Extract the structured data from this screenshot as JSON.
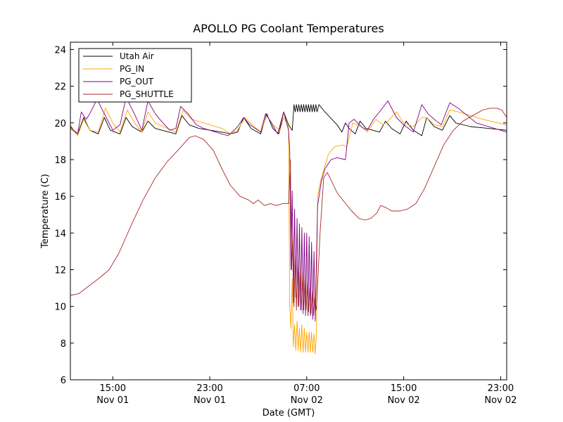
{
  "chart_data": {
    "type": "line",
    "title": "APOLLO PG Coolant Temperatures",
    "xlabel": "Date (GMT)",
    "ylabel": "Temperature (C)",
    "x_unit": "hours since Nov 01 11:30 GMT",
    "xlim": [
      0,
      36
    ],
    "ylim": [
      6,
      24.4
    ],
    "yticks": [
      6,
      8,
      10,
      12,
      14,
      16,
      18,
      20,
      22,
      24
    ],
    "xticks": [
      {
        "x": 3.5,
        "line1": "15:00",
        "line2": "Nov 01"
      },
      {
        "x": 11.5,
        "line1": "23:00",
        "line2": "Nov 01"
      },
      {
        "x": 19.5,
        "line1": "07:00",
        "line2": "Nov 02"
      },
      {
        "x": 27.5,
        "line1": "15:00",
        "line2": "Nov 02"
      },
      {
        "x": 35.5,
        "line1": "23:00",
        "line2": "Nov 02"
      }
    ],
    "legend_position": "top-left",
    "series": [
      {
        "name": "Utah Air",
        "color": "#000000",
        "points": [
          [
            0,
            19.8
          ],
          [
            0.6,
            19.4
          ],
          [
            1.1,
            20.3
          ],
          [
            1.6,
            19.6
          ],
          [
            2.3,
            19.4
          ],
          [
            2.8,
            20.3
          ],
          [
            3.3,
            19.6
          ],
          [
            4.1,
            19.4
          ],
          [
            4.6,
            20.3
          ],
          [
            5.1,
            19.8
          ],
          [
            5.9,
            19.5
          ],
          [
            6.4,
            20.1
          ],
          [
            7.0,
            19.7
          ],
          [
            8.7,
            19.4
          ],
          [
            9.2,
            20.4
          ],
          [
            9.8,
            19.9
          ],
          [
            10.6,
            19.7
          ],
          [
            12.5,
            19.5
          ],
          [
            13.2,
            19.4
          ],
          [
            13.8,
            19.5
          ],
          [
            14.3,
            20.3
          ],
          [
            14.9,
            19.7
          ],
          [
            15.7,
            19.4
          ],
          [
            16.2,
            20.5
          ],
          [
            16.7,
            19.7
          ],
          [
            17.2,
            19.4
          ],
          [
            17.6,
            20.6
          ],
          [
            18.0,
            19.9
          ],
          [
            18.3,
            19.6
          ],
          [
            18.45,
            21.0
          ],
          [
            18.55,
            20.6
          ],
          [
            18.65,
            21.0
          ],
          [
            18.75,
            20.6
          ],
          [
            18.85,
            21.0
          ],
          [
            18.95,
            20.6
          ],
          [
            19.05,
            21.0
          ],
          [
            19.15,
            20.6
          ],
          [
            19.25,
            21.0
          ],
          [
            19.35,
            20.6
          ],
          [
            19.45,
            21.0
          ],
          [
            19.55,
            20.6
          ],
          [
            19.65,
            21.0
          ],
          [
            19.75,
            20.6
          ],
          [
            19.85,
            21.0
          ],
          [
            19.95,
            20.6
          ],
          [
            20.05,
            21.0
          ],
          [
            20.15,
            20.6
          ],
          [
            20.25,
            21.0
          ],
          [
            20.35,
            20.6
          ],
          [
            20.5,
            21.0
          ],
          [
            21.0,
            20.6
          ],
          [
            22.0,
            19.9
          ],
          [
            22.4,
            19.5
          ],
          [
            22.7,
            20.0
          ],
          [
            23.0,
            19.7
          ],
          [
            23.5,
            19.4
          ],
          [
            23.9,
            20.1
          ],
          [
            24.4,
            19.7
          ],
          [
            25.5,
            19.5
          ],
          [
            26.0,
            20.1
          ],
          [
            26.5,
            19.7
          ],
          [
            27.2,
            19.4
          ],
          [
            27.7,
            20.1
          ],
          [
            28.3,
            19.6
          ],
          [
            29.0,
            19.3
          ],
          [
            29.4,
            20.3
          ],
          [
            30.0,
            19.8
          ],
          [
            30.7,
            19.6
          ],
          [
            31.3,
            20.4
          ],
          [
            31.8,
            20.0
          ],
          [
            33.0,
            19.8
          ],
          [
            34.5,
            19.7
          ],
          [
            36.0,
            19.6
          ]
        ]
      },
      {
        "name": "PG_IN",
        "color": "#ffa500",
        "points": [
          [
            0,
            19.9
          ],
          [
            0.6,
            19.3
          ],
          [
            1.1,
            20.2
          ],
          [
            1.6,
            19.6
          ],
          [
            2.3,
            19.5
          ],
          [
            2.9,
            20.8
          ],
          [
            3.5,
            20.0
          ],
          [
            4.1,
            19.5
          ],
          [
            4.7,
            20.7
          ],
          [
            5.3,
            20.0
          ],
          [
            5.9,
            19.5
          ],
          [
            6.4,
            20.6
          ],
          [
            7.0,
            20.0
          ],
          [
            8.7,
            19.5
          ],
          [
            9.3,
            20.7
          ],
          [
            10.0,
            20.2
          ],
          [
            12.5,
            19.7
          ],
          [
            13.2,
            19.4
          ],
          [
            13.8,
            19.6
          ],
          [
            14.4,
            20.3
          ],
          [
            15.0,
            19.9
          ],
          [
            15.7,
            19.5
          ],
          [
            16.2,
            20.4
          ],
          [
            16.7,
            19.9
          ],
          [
            17.3,
            19.6
          ],
          [
            17.6,
            20.3
          ],
          [
            18.0,
            19.8
          ],
          [
            18.1,
            10.0
          ],
          [
            18.2,
            8.8
          ],
          [
            18.3,
            11.5
          ],
          [
            18.4,
            7.8
          ],
          [
            18.5,
            9.0
          ],
          [
            18.6,
            7.6
          ],
          [
            18.7,
            9.2
          ],
          [
            18.8,
            7.6
          ],
          [
            18.9,
            8.8
          ],
          [
            19.0,
            7.5
          ],
          [
            19.1,
            9.0
          ],
          [
            19.2,
            7.5
          ],
          [
            19.3,
            8.8
          ],
          [
            19.4,
            7.5
          ],
          [
            19.5,
            8.6
          ],
          [
            19.6,
            7.5
          ],
          [
            19.7,
            8.6
          ],
          [
            19.8,
            7.5
          ],
          [
            19.9,
            8.6
          ],
          [
            20.0,
            7.5
          ],
          [
            20.1,
            8.5
          ],
          [
            20.2,
            7.4
          ],
          [
            20.3,
            8.5
          ],
          [
            20.4,
            16.0
          ],
          [
            20.7,
            17.0
          ],
          [
            21.3,
            18.3
          ],
          [
            21.8,
            18.7
          ],
          [
            22.5,
            18.8
          ],
          [
            22.8,
            18.7
          ],
          [
            23.3,
            20.0
          ],
          [
            24.0,
            19.8
          ],
          [
            24.5,
            19.5
          ],
          [
            25.2,
            20.2
          ],
          [
            25.8,
            19.9
          ],
          [
            26.2,
            20.1
          ],
          [
            26.9,
            20.6
          ],
          [
            27.5,
            20.0
          ],
          [
            28.3,
            19.8
          ],
          [
            29.0,
            20.3
          ],
          [
            29.4,
            20.3
          ],
          [
            30.0,
            19.9
          ],
          [
            30.7,
            19.8
          ],
          [
            31.3,
            20.7
          ],
          [
            32.0,
            20.6
          ],
          [
            34.0,
            20.2
          ],
          [
            36.0,
            19.9
          ]
        ]
      },
      {
        "name": "PG_OUT",
        "color": "#800080",
        "points": [
          [
            0,
            19.7
          ],
          [
            0.6,
            19.4
          ],
          [
            0.9,
            20.6
          ],
          [
            1.3,
            20.2
          ],
          [
            1.6,
            20.5
          ],
          [
            2.2,
            21.3
          ],
          [
            2.8,
            20.5
          ],
          [
            3.5,
            19.6
          ],
          [
            4.1,
            19.9
          ],
          [
            4.6,
            21.4
          ],
          [
            5.2,
            20.6
          ],
          [
            5.9,
            19.6
          ],
          [
            6.4,
            21.2
          ],
          [
            7.0,
            20.5
          ],
          [
            7.5,
            20.1
          ],
          [
            8.2,
            19.6
          ],
          [
            8.7,
            19.7
          ],
          [
            9.1,
            20.9
          ],
          [
            9.7,
            20.5
          ],
          [
            10.4,
            19.9
          ],
          [
            11.0,
            19.7
          ],
          [
            12.5,
            19.4
          ],
          [
            13.0,
            19.3
          ],
          [
            13.5,
            19.6
          ],
          [
            13.8,
            19.8
          ],
          [
            14.3,
            20.3
          ],
          [
            14.8,
            19.9
          ],
          [
            15.7,
            19.5
          ],
          [
            16.1,
            20.5
          ],
          [
            16.6,
            20.0
          ],
          [
            17.1,
            19.4
          ],
          [
            17.6,
            20.6
          ],
          [
            18.0,
            19.6
          ],
          [
            18.1,
            18.5
          ],
          [
            18.2,
            12.0
          ],
          [
            18.3,
            16.3
          ],
          [
            18.4,
            10.2
          ],
          [
            18.5,
            15.3
          ],
          [
            18.6,
            10.5
          ],
          [
            18.7,
            14.8
          ],
          [
            18.8,
            10.0
          ],
          [
            18.9,
            14.5
          ],
          [
            19.0,
            9.8
          ],
          [
            19.1,
            14.3
          ],
          [
            19.2,
            9.6
          ],
          [
            19.3,
            14.0
          ],
          [
            19.4,
            9.5
          ],
          [
            19.5,
            14.0
          ],
          [
            19.6,
            9.5
          ],
          [
            19.7,
            13.8
          ],
          [
            19.8,
            9.5
          ],
          [
            19.9,
            13.5
          ],
          [
            20.0,
            9.3
          ],
          [
            20.1,
            13.0
          ],
          [
            20.2,
            9.2
          ],
          [
            20.3,
            12.5
          ],
          [
            20.4,
            15.5
          ],
          [
            20.7,
            16.8
          ],
          [
            21.0,
            17.5
          ],
          [
            21.5,
            18.0
          ],
          [
            22.0,
            18.1
          ],
          [
            22.7,
            18.0
          ],
          [
            23.0,
            20.0
          ],
          [
            23.4,
            20.2
          ],
          [
            24.0,
            19.8
          ],
          [
            24.5,
            19.6
          ],
          [
            25.0,
            20.2
          ],
          [
            25.5,
            20.6
          ],
          [
            26.2,
            21.2
          ],
          [
            26.9,
            20.3
          ],
          [
            27.5,
            19.9
          ],
          [
            28.3,
            19.5
          ],
          [
            29.0,
            21.0
          ],
          [
            29.5,
            20.5
          ],
          [
            30.2,
            20.1
          ],
          [
            30.6,
            19.9
          ],
          [
            31.3,
            21.1
          ],
          [
            32.0,
            20.8
          ],
          [
            33.5,
            20.0
          ],
          [
            36.0,
            19.5
          ]
        ]
      },
      {
        "name": "PG_SHUTTLE",
        "color": "#a52a2a",
        "points": [
          [
            0,
            10.6
          ],
          [
            0.7,
            10.7
          ],
          [
            1.5,
            11.1
          ],
          [
            2.3,
            11.5
          ],
          [
            3.2,
            12.0
          ],
          [
            4.0,
            12.9
          ],
          [
            5.0,
            14.4
          ],
          [
            6.0,
            15.8
          ],
          [
            7.0,
            17.0
          ],
          [
            8.0,
            17.9
          ],
          [
            9.0,
            18.6
          ],
          [
            9.8,
            19.2
          ],
          [
            10.3,
            19.3
          ],
          [
            11.0,
            19.1
          ],
          [
            11.8,
            18.5
          ],
          [
            12.5,
            17.5
          ],
          [
            13.2,
            16.6
          ],
          [
            14.0,
            16.0
          ],
          [
            14.7,
            15.8
          ],
          [
            15.1,
            15.6
          ],
          [
            15.5,
            15.8
          ],
          [
            16.0,
            15.5
          ],
          [
            16.5,
            15.6
          ],
          [
            17.0,
            15.5
          ],
          [
            17.5,
            15.6
          ],
          [
            18.0,
            15.6
          ],
          [
            18.15,
            18.0
          ],
          [
            18.25,
            12.0
          ],
          [
            18.35,
            14.0
          ],
          [
            18.45,
            10.0
          ],
          [
            18.55,
            13.0
          ],
          [
            18.65,
            9.8
          ],
          [
            18.75,
            12.5
          ],
          [
            18.85,
            10.0
          ],
          [
            18.95,
            12.0
          ],
          [
            19.05,
            9.8
          ],
          [
            19.15,
            11.8
          ],
          [
            19.25,
            9.8
          ],
          [
            19.35,
            11.5
          ],
          [
            19.45,
            9.8
          ],
          [
            19.55,
            11.3
          ],
          [
            19.65,
            9.7
          ],
          [
            19.75,
            11.0
          ],
          [
            19.85,
            9.6
          ],
          [
            19.95,
            10.8
          ],
          [
            20.05,
            9.5
          ],
          [
            20.15,
            10.5
          ],
          [
            20.3,
            9.8
          ],
          [
            20.6,
            14.0
          ],
          [
            20.9,
            17.0
          ],
          [
            21.2,
            17.3
          ],
          [
            21.5,
            16.9
          ],
          [
            22.0,
            16.2
          ],
          [
            22.6,
            15.7
          ],
          [
            23.2,
            15.2
          ],
          [
            23.8,
            14.8
          ],
          [
            24.3,
            14.7
          ],
          [
            24.8,
            14.8
          ],
          [
            25.3,
            15.1
          ],
          [
            25.6,
            15.5
          ],
          [
            26.0,
            15.4
          ],
          [
            26.5,
            15.2
          ],
          [
            27.2,
            15.2
          ],
          [
            27.8,
            15.3
          ],
          [
            28.5,
            15.6
          ],
          [
            29.2,
            16.4
          ],
          [
            30.0,
            17.6
          ],
          [
            30.8,
            18.8
          ],
          [
            31.6,
            19.6
          ],
          [
            32.4,
            20.1
          ],
          [
            33.2,
            20.4
          ],
          [
            34.0,
            20.7
          ],
          [
            34.6,
            20.8
          ],
          [
            35.2,
            20.8
          ],
          [
            35.6,
            20.7
          ],
          [
            36.0,
            20.3
          ]
        ]
      }
    ]
  }
}
